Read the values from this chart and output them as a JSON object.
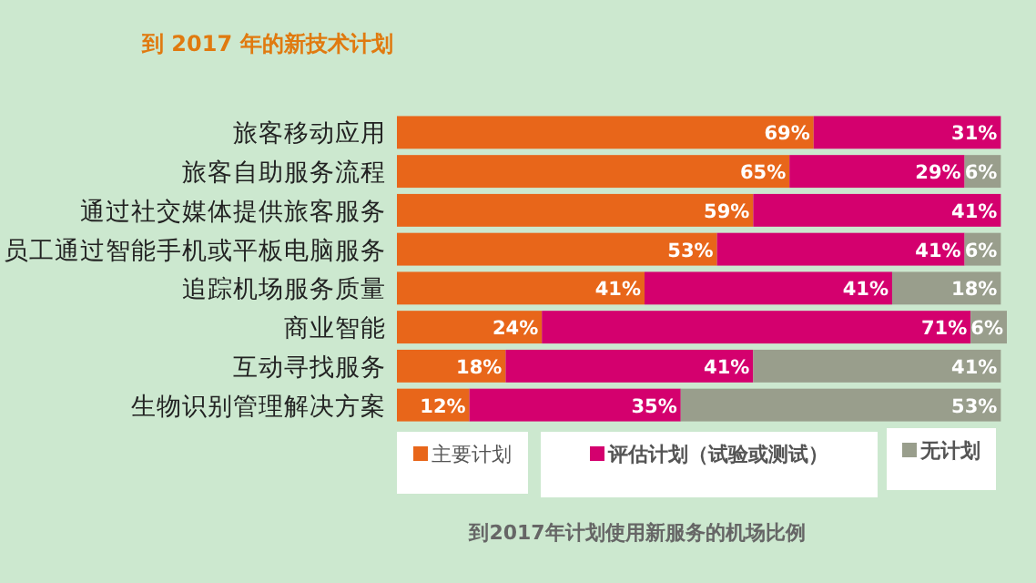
{
  "chart_data": {
    "type": "bar",
    "orientation": "horizontal",
    "stacked": true,
    "title": "到 2017 年的新技术计划",
    "categories": [
      "旅客移动应用",
      "旅客自助服务流程",
      "通过社交媒体提供旅客服务",
      "员工通过智能手机或平板电脑服务",
      "追踪机场服务质量",
      "商业智能",
      "互动寻找服务",
      "生物识别管理解决方案"
    ],
    "series": [
      {
        "name": "主要计划",
        "color": "#e8661a",
        "values": [
          69,
          65,
          59,
          53,
          41,
          24,
          18,
          12
        ],
        "value_labels": [
          "69%",
          "65%",
          "59%",
          "53%",
          "41%",
          "24%",
          "18%",
          "12%"
        ]
      },
      {
        "name": "评估计划（试验或测试）",
        "color": "#d4006e",
        "values": [
          31,
          29,
          41,
          41,
          41,
          71,
          41,
          35
        ],
        "value_labels": [
          "31%",
          "29%",
          "41%",
          "41%",
          "41%",
          "71%",
          "41%",
          "35%"
        ]
      },
      {
        "name": "无计划",
        "color": "#999e8c",
        "values": [
          null,
          6,
          null,
          6,
          18,
          6,
          41,
          53
        ],
        "value_labels": [
          null,
          "6%",
          null,
          "6%",
          "18%",
          "6%",
          "41%",
          "53%"
        ]
      }
    ],
    "legend": "bottom",
    "annotations": [
      "到2017年计划使用新服务的机场比例"
    ]
  }
}
